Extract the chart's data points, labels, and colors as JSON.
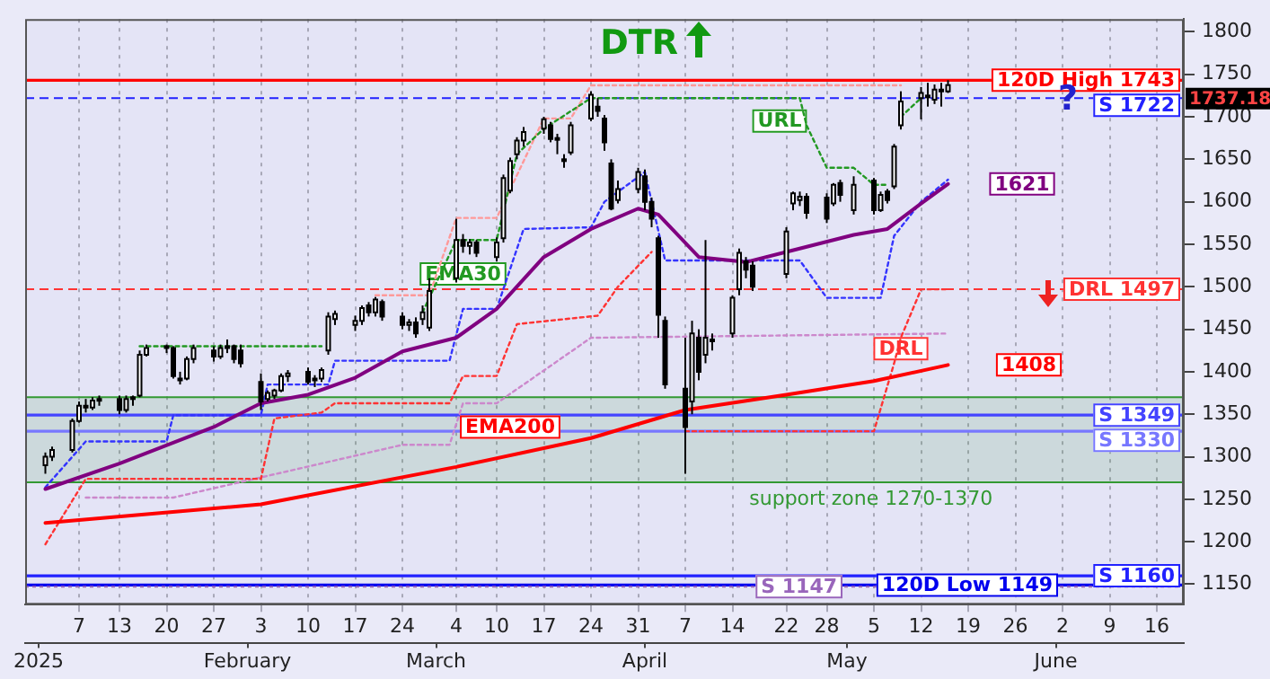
{
  "chart_data": {
    "type": "candlestick",
    "x": [
      "2025-01-02",
      "2025-01-03",
      "2025-01-06",
      "2025-01-07",
      "2025-01-08",
      "2025-01-09",
      "2025-01-10",
      "2025-01-13",
      "2025-01-14",
      "2025-01-15",
      "2025-01-16",
      "2025-01-17",
      "2025-01-20",
      "2025-01-21",
      "2025-01-22",
      "2025-01-23",
      "2025-01-24",
      "2025-01-27",
      "2025-01-28",
      "2025-01-29",
      "2025-01-30",
      "2025-01-31",
      "2025-02-03",
      "2025-02-04",
      "2025-02-05",
      "2025-02-06",
      "2025-02-07",
      "2025-02-10",
      "2025-02-11",
      "2025-02-12",
      "2025-02-13",
      "2025-02-14",
      "2025-02-17",
      "2025-02-18",
      "2025-02-19",
      "2025-02-20",
      "2025-02-21",
      "2025-02-24",
      "2025-02-25",
      "2025-02-26",
      "2025-02-27",
      "2025-02-28",
      "2025-03-04",
      "2025-03-05",
      "2025-03-06",
      "2025-03-07",
      "2025-03-10",
      "2025-03-11",
      "2025-03-12",
      "2025-03-13",
      "2025-03-14",
      "2025-03-17",
      "2025-03-18",
      "2025-03-19",
      "2025-03-20",
      "2025-03-21",
      "2025-03-24",
      "2025-03-25",
      "2025-03-26",
      "2025-03-27",
      "2025-03-28",
      "2025-03-31",
      "2025-04-01",
      "2025-04-02",
      "2025-04-03",
      "2025-04-04",
      "2025-04-07",
      "2025-04-08",
      "2025-04-09",
      "2025-04-10",
      "2025-04-11",
      "2025-04-14",
      "2025-04-15",
      "2025-04-16",
      "2025-04-17",
      "2025-04-22",
      "2025-04-23",
      "2025-04-24",
      "2025-04-25",
      "2025-04-28",
      "2025-04-29",
      "2025-04-30",
      "2025-05-02",
      "2025-05-05",
      "2025-05-06",
      "2025-05-07",
      "2025-05-08",
      "2025-05-09",
      "2025-05-12",
      "2025-05-13",
      "2025-05-14",
      "2025-05-15",
      "2025-05-16"
    ],
    "ohlc": [
      [
        1290,
        1305,
        1280,
        1300
      ],
      [
        1300,
        1312,
        1295,
        1308
      ],
      [
        1308,
        1345,
        1305,
        1342
      ],
      [
        1342,
        1365,
        1340,
        1360
      ],
      [
        1360,
        1368,
        1352,
        1358
      ],
      [
        1358,
        1370,
        1355,
        1366
      ],
      [
        1366,
        1372,
        1360,
        1368
      ],
      [
        1368,
        1372,
        1350,
        1355
      ],
      [
        1355,
        1372,
        1352,
        1368
      ],
      [
        1368,
        1372,
        1360,
        1370
      ],
      [
        1372,
        1425,
        1370,
        1420
      ],
      [
        1420,
        1432,
        1418,
        1428
      ],
      [
        1428,
        1432,
        1422,
        1430
      ],
      [
        1428,
        1430,
        1392,
        1395
      ],
      [
        1392,
        1400,
        1385,
        1390
      ],
      [
        1392,
        1418,
        1390,
        1415
      ],
      [
        1415,
        1432,
        1410,
        1428
      ],
      [
        1425,
        1430,
        1412,
        1418
      ],
      [
        1418,
        1432,
        1415,
        1428
      ],
      [
        1428,
        1438,
        1422,
        1430
      ],
      [
        1430,
        1432,
        1410,
        1415
      ],
      [
        1425,
        1432,
        1405,
        1410
      ],
      [
        1388,
        1398,
        1355,
        1365
      ],
      [
        1368,
        1378,
        1365,
        1375
      ],
      [
        1372,
        1380,
        1368,
        1378
      ],
      [
        1378,
        1398,
        1376,
        1395
      ],
      [
        1395,
        1402,
        1388,
        1398
      ],
      [
        1400,
        1405,
        1385,
        1388
      ],
      [
        1390,
        1396,
        1382,
        1392
      ],
      [
        1392,
        1405,
        1388,
        1402
      ],
      [
        1425,
        1470,
        1420,
        1465
      ],
      [
        1462,
        1472,
        1455,
        1468
      ],
      [
        1455,
        1466,
        1448,
        1460
      ],
      [
        1460,
        1478,
        1455,
        1475
      ],
      [
        1478,
        1482,
        1465,
        1470
      ],
      [
        1470,
        1488,
        1465,
        1485
      ],
      [
        1482,
        1485,
        1460,
        1465
      ],
      [
        1465,
        1470,
        1450,
        1455
      ],
      [
        1455,
        1462,
        1448,
        1458
      ],
      [
        1458,
        1464,
        1440,
        1445
      ],
      [
        1462,
        1478,
        1455,
        1470
      ],
      [
        1452,
        1510,
        1448,
        1495
      ],
      [
        1510,
        1580,
        1505,
        1555
      ],
      [
        1555,
        1562,
        1540,
        1548
      ],
      [
        1548,
        1556,
        1538,
        1552
      ],
      [
        1552,
        1555,
        1535,
        1540
      ],
      [
        1535,
        1558,
        1530,
        1552
      ],
      [
        1557,
        1632,
        1552,
        1628
      ],
      [
        1613,
        1652,
        1610,
        1648
      ],
      [
        1656,
        1676,
        1650,
        1672
      ],
      [
        1672,
        1688,
        1665,
        1682
      ],
      [
        1686,
        1700,
        1680,
        1697
      ],
      [
        1690,
        1694,
        1670,
        1674
      ],
      [
        1674,
        1680,
        1656,
        1675
      ],
      [
        1650,
        1656,
        1640,
        1648
      ],
      [
        1658,
        1694,
        1655,
        1690
      ],
      [
        1698,
        1730,
        1695,
        1726
      ],
      [
        1712,
        1722,
        1700,
        1707
      ],
      [
        1698,
        1702,
        1660,
        1670
      ],
      [
        1645,
        1650,
        1590,
        1592
      ],
      [
        1602,
        1625,
        1598,
        1615
      ],
      [
        1615,
        1640,
        1610,
        1635
      ],
      [
        1630,
        1638,
        1590,
        1600
      ],
      [
        1600,
        1605,
        1570,
        1580
      ],
      [
        1557,
        1560,
        1440,
        1467
      ],
      [
        1460,
        1465,
        1380,
        1385
      ],
      [
        1380,
        1440,
        1280,
        1335
      ],
      [
        1365,
        1460,
        1350,
        1445
      ],
      [
        1440,
        1450,
        1390,
        1400
      ],
      [
        1420,
        1555,
        1410,
        1440
      ],
      [
        1438,
        1445,
        1425,
        1436
      ],
      [
        1445,
        1490,
        1440,
        1487
      ],
      [
        1497,
        1545,
        1490,
        1540
      ],
      [
        1530,
        1535,
        1510,
        1520
      ],
      [
        1525,
        1530,
        1495,
        1500
      ],
      [
        1515,
        1570,
        1510,
        1565
      ],
      [
        1598,
        1612,
        1590,
        1610
      ],
      [
        1602,
        1612,
        1595,
        1606
      ],
      [
        1606,
        1610,
        1580,
        1587
      ],
      [
        1605,
        1610,
        1575,
        1580
      ],
      [
        1598,
        1622,
        1595,
        1620
      ],
      [
        1622,
        1626,
        1600,
        1608
      ],
      [
        1590,
        1630,
        1585,
        1620
      ],
      [
        1625,
        1628,
        1585,
        1590
      ],
      [
        1590,
        1612,
        1588,
        1608
      ],
      [
        1612,
        1615,
        1598,
        1602
      ],
      [
        1618,
        1668,
        1615,
        1665
      ],
      [
        1690,
        1730,
        1685,
        1718
      ],
      [
        1722,
        1735,
        1697,
        1728
      ],
      [
        1725,
        1740,
        1712,
        1725
      ],
      [
        1720,
        1738,
        1715,
        1732
      ],
      [
        1730,
        1740,
        1712,
        1732
      ],
      [
        1730,
        1743,
        1728,
        1737.18
      ]
    ],
    "series": [
      {
        "type": "line",
        "color": "#800080",
        "line_style": "solid",
        "x": [
          "2025-01-02",
          "2025-01-13",
          "2025-01-27",
          "2025-02-03",
          "2025-02-10",
          "2025-02-17",
          "2025-02-24",
          "2025-03-04",
          "2025-03-10",
          "2025-03-17",
          "2025-03-24",
          "2025-03-31",
          "2025-04-03",
          "2025-04-09",
          "2025-04-16",
          "2025-04-22",
          "2025-05-02",
          "2025-05-07",
          "2025-05-12",
          "2025-05-16"
        ],
        "values": [
          1262,
          1292,
          1335,
          1363,
          1373,
          1393,
          1424,
          1440,
          1474,
          1535,
          1568,
          1592,
          1585,
          1535,
          1529,
          1541,
          1561,
          1568,
          1598,
          1621
        ]
      },
      {
        "type": "line",
        "color": "#ff0000",
        "line_style": "solid",
        "x": [
          "2025-01-02",
          "2025-02-03",
          "2025-03-04",
          "2025-03-24",
          "2025-04-07",
          "2025-04-22",
          "2025-05-05",
          "2025-05-16"
        ],
        "values": [
          1222,
          1244,
          1288,
          1322,
          1355,
          1373,
          1389,
          1408
        ]
      },
      {
        "type": "line",
        "color": "#229922",
        "line_style": "dotted",
        "x": [
          "2025-01-16",
          "2025-02-12",
          "2025-02-13",
          "2025-02-27",
          "2025-03-04",
          "2025-03-10",
          "2025-03-13",
          "2025-03-17",
          "2025-03-24",
          "2025-04-24",
          "2025-04-25",
          "2025-04-28",
          "2025-05-02",
          "2025-05-05",
          "2025-05-07",
          "2025-05-08",
          "2025-05-09",
          "2025-05-12"
        ],
        "values": [
          1430,
          1430,
          null,
          1470,
          1555,
          1555,
          1656,
          1686,
          1722,
          1722,
          1690,
          1640,
          1640,
          1620,
          1620,
          null,
          1700,
          1722
        ]
      },
      {
        "type": "line",
        "color": "#ff3333",
        "line_style": "dotted",
        "x": [
          "2025-01-02",
          "2025-01-08",
          "2025-02-03",
          "2025-02-05",
          "2025-02-12",
          "2025-02-14",
          "2025-03-03",
          "2025-03-05",
          "2025-03-10",
          "2025-03-13",
          "2025-03-25",
          "2025-03-28",
          "2025-04-02",
          "2025-04-04",
          "2025-04-07",
          "2025-05-05",
          "2025-05-08",
          "2025-05-09",
          "2025-05-12",
          "2025-05-16"
        ],
        "values": [
          1197,
          1274,
          1274,
          1345,
          1352,
          1363,
          1363,
          1395,
          1395,
          1456,
          1466,
          1500,
          1541,
          null,
          1330,
          1330,
          1410,
          1440,
          1497,
          1497
        ]
      },
      {
        "type": "line",
        "color": "#3333ff",
        "line_style": "dotted",
        "x": [
          "2025-01-02",
          "2025-01-08",
          "2025-01-20",
          "2025-01-21",
          "2025-02-03",
          "2025-02-04",
          "2025-02-13",
          "2025-02-14",
          "2025-03-03",
          "2025-03-05",
          "2025-03-10",
          "2025-03-14",
          "2025-03-24",
          "2025-03-26",
          "2025-04-01",
          "2025-04-04",
          "2025-04-24",
          "2025-04-28",
          "2025-05-06",
          "2025-05-08",
          "2025-05-12",
          "2025-05-16"
        ],
        "values": [
          1264,
          1318,
          1318,
          1349,
          1349,
          1385,
          1385,
          1413,
          1413,
          1474,
          1474,
          1568,
          1570,
          1600,
          1635,
          1531,
          1531,
          1487,
          1487,
          1560,
          1600,
          1626
        ]
      },
      {
        "type": "line",
        "color": "#ff9999",
        "line_style": "dotted",
        "x": [
          "2025-02-20",
          "2025-02-28",
          "2025-03-04",
          "2025-03-10",
          "2025-03-17",
          "2025-03-21",
          "2025-03-24",
          "2025-05-09"
        ],
        "values": [
          1490,
          1490,
          1581,
          1581,
          1698,
          1698,
          1737,
          1737
        ]
      },
      {
        "type": "line",
        "color": "#cc88cc",
        "line_style": "dotted",
        "x": [
          "2025-01-08",
          "2025-01-21",
          "2025-02-24",
          "2025-03-03",
          "2025-03-05",
          "2025-03-10",
          "2025-03-24",
          "2025-05-16"
        ],
        "values": [
          1252,
          1252,
          1314,
          1314,
          1363,
          1363,
          1440,
          1445
        ]
      }
    ],
    "xlim": [
      "2024-12-30",
      "2025-06-20"
    ],
    "xticks": [
      {
        "value": "2025-01-07",
        "label": "7"
      },
      {
        "value": "2025-01-13",
        "label": "13"
      },
      {
        "value": "2025-01-20",
        "label": "20"
      },
      {
        "value": "2025-01-27",
        "label": "27"
      },
      {
        "value": "2025-02-03",
        "label": "3"
      },
      {
        "value": "2025-02-10",
        "label": "10"
      },
      {
        "value": "2025-02-17",
        "label": "17"
      },
      {
        "value": "2025-02-24",
        "label": "24"
      },
      {
        "value": "2025-03-04",
        "label": "4"
      },
      {
        "value": "2025-03-10",
        "label": "10"
      },
      {
        "value": "2025-03-17",
        "label": "17"
      },
      {
        "value": "2025-03-24",
        "label": "24"
      },
      {
        "value": "2025-03-31",
        "label": "31"
      },
      {
        "value": "2025-04-07",
        "label": "7"
      },
      {
        "value": "2025-04-14",
        "label": "14"
      },
      {
        "value": "2025-04-22",
        "label": "22"
      },
      {
        "value": "2025-04-28",
        "label": "28"
      },
      {
        "value": "2025-05-05",
        "label": "5"
      },
      {
        "value": "2025-05-12",
        "label": "12"
      },
      {
        "value": "2025-05-19",
        "label": "19"
      },
      {
        "value": "2025-05-26",
        "label": "26"
      },
      {
        "value": "2025-06-02",
        "label": "2"
      },
      {
        "value": "2025-06-09",
        "label": "9"
      },
      {
        "value": "2025-06-16",
        "label": "16"
      }
    ],
    "x2lim": [
      "2024-12-30",
      "2025-06-20"
    ],
    "x2ticks": [
      {
        "value": "2025-01-01",
        "label": "2025"
      },
      {
        "value": "2025-02-01",
        "label": "February"
      },
      {
        "value": "2025-03-01",
        "label": "March"
      },
      {
        "value": "2025-04-01",
        "label": "April"
      },
      {
        "value": "2025-05-01",
        "label": "May"
      },
      {
        "value": "2025-06-01",
        "label": "June"
      }
    ],
    "ylim": [
      1126,
      1815
    ],
    "yticks": [
      1150,
      1200,
      1250,
      1300,
      1350,
      1400,
      1450,
      1500,
      1550,
      1600,
      1650,
      1700,
      1750,
      1800
    ],
    "ref_lines": [
      {
        "axis": "y",
        "value": 1743,
        "label": "120D High 1743",
        "color": "#ff0000",
        "line_style": "solid"
      },
      {
        "axis": "y",
        "value": 1722,
        "label": "S 1722",
        "color": "#2222ff",
        "line_style": "dashed"
      },
      {
        "axis": "y",
        "value": 1497,
        "label": "DRL 1497",
        "color": "#ff3333",
        "line_style": "dashed"
      },
      {
        "axis": "y",
        "value": 1349,
        "label": "S 1349",
        "color": "#4444ff",
        "line_style": "solid"
      },
      {
        "axis": "y",
        "value": 1330,
        "label": "S 1330",
        "color": "#7777ff",
        "line_style": "solid"
      },
      {
        "axis": "y",
        "value": 1160,
        "label": "S 1160",
        "color": "#2222ff",
        "line_style": "solid"
      },
      {
        "axis": "y",
        "value": 1149,
        "label": "120D Low 1149",
        "color": "#0000ee",
        "line_style": "solid"
      },
      {
        "axis": "y",
        "value": 1147,
        "label": "S 1147",
        "color": "#9966bb",
        "line_style": "dotted"
      }
    ],
    "bands": [
      {
        "axis": "y",
        "from": 1270,
        "to": 1370,
        "label": "support zone 1270-1370",
        "color": "#339933"
      }
    ],
    "annotations": [
      "DTR",
      "?",
      {
        "text": "EMA30",
        "x": "2025-03-05",
        "y": 1515
      },
      {
        "text": "EMA200",
        "x": "2025-03-12",
        "y": 1335
      },
      {
        "text": "URL",
        "x": "2025-04-21",
        "y": 1695
      },
      {
        "text": "DRL",
        "x": "2025-05-09",
        "y": 1427
      },
      {
        "text": "1621",
        "x": "2025-05-27",
        "y": 1621
      },
      {
        "text": "1408",
        "x": "2025-05-28",
        "y": 1408
      },
      "1737.18"
    ],
    "grid": "x",
    "legend": false,
    "marker": "none"
  }
}
